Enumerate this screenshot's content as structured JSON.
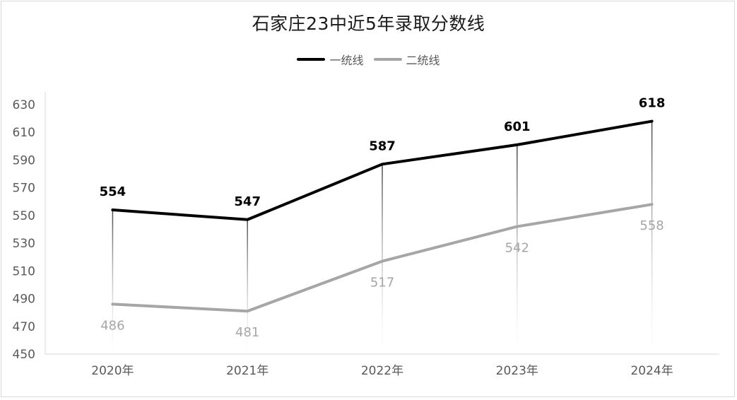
{
  "chart_data": {
    "type": "line",
    "title": "石家庄23中近5年录取分数线",
    "categories": [
      "2020年",
      "2021年",
      "2022年",
      "2023年",
      "2024年"
    ],
    "series": [
      {
        "name": "一统线",
        "values": [
          554,
          547,
          587,
          601,
          618
        ],
        "color": "#000000"
      },
      {
        "name": "二统线",
        "values": [
          486,
          481,
          517,
          542,
          558
        ],
        "color": "#a6a6a6"
      }
    ],
    "ylim": [
      450,
      630
    ],
    "yticks": [
      "450",
      "470",
      "490",
      "510",
      "530",
      "550",
      "570",
      "590",
      "610",
      "630"
    ],
    "xlabel": "",
    "ylabel": "",
    "grid": false,
    "legend": "top-center"
  }
}
